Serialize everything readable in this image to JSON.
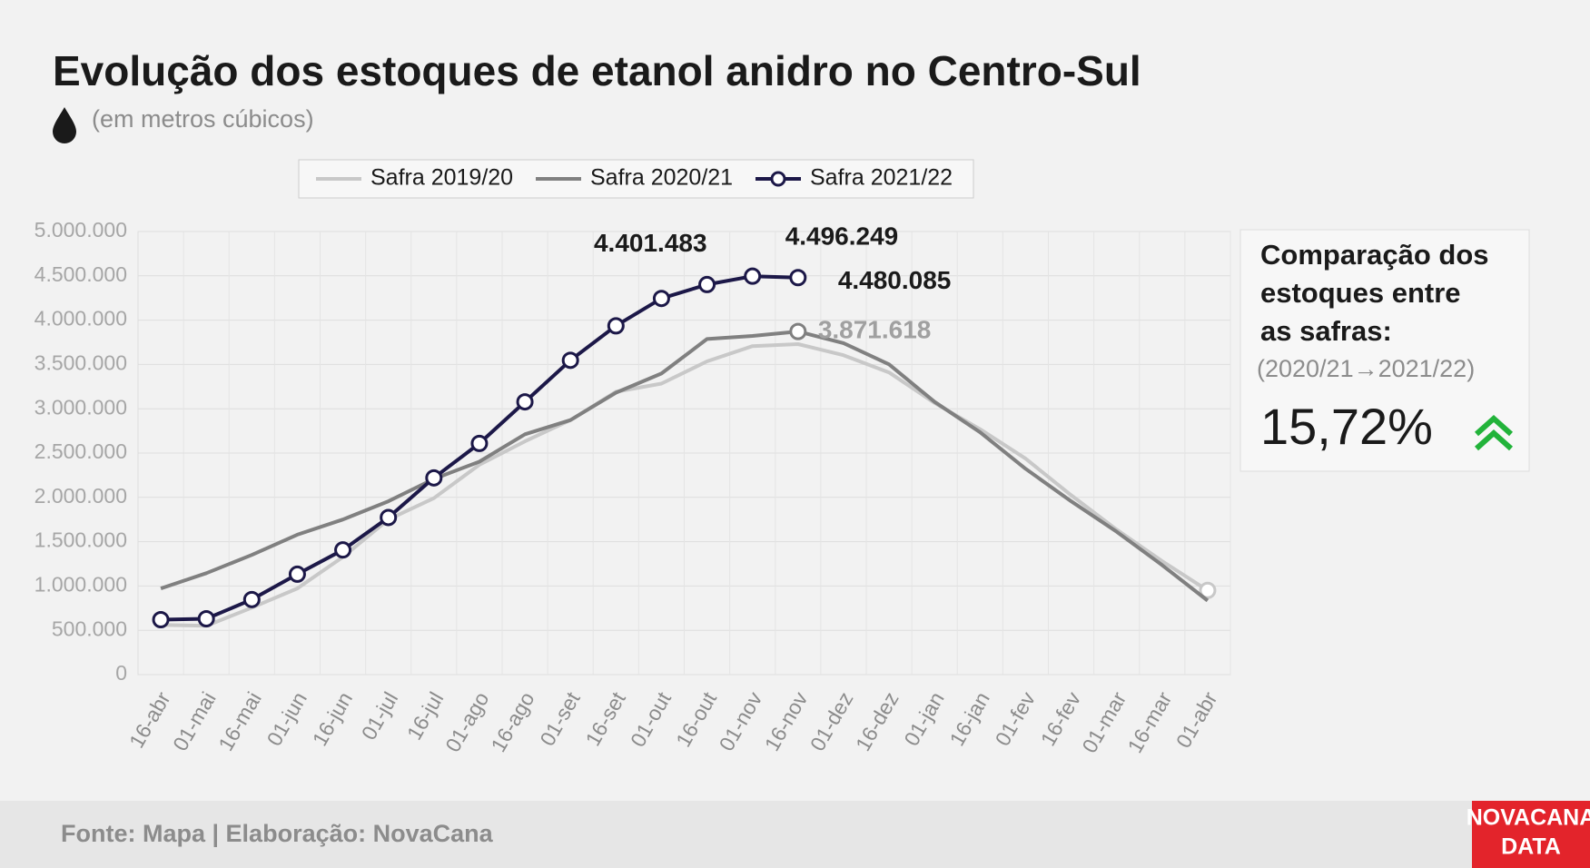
{
  "chart_data": {
    "type": "line",
    "title": "Evolução dos estoques de etanol anidro no Centro-Sul",
    "subtitle": "(em metros cúbicos)",
    "categories": [
      "16-abr",
      "01-mai",
      "16-mai",
      "01-jun",
      "16-jun",
      "01-jul",
      "16-jul",
      "01-ago",
      "16-ago",
      "01-set",
      "16-set",
      "01-out",
      "16-out",
      "01-nov",
      "16-nov",
      "01-dez",
      "16-dez",
      "01-jan",
      "16-jan",
      "01-fev",
      "16-fev",
      "01-mar",
      "16-mar",
      "01-abr"
    ],
    "series": [
      {
        "name": "Safra 2019/20",
        "color": "#c8c8c8",
        "marker_index": 23,
        "values": [
          560000,
          550000,
          755000,
          972000,
          1327000,
          1750000,
          1991000,
          2368000,
          2632000,
          2872000,
          3192000,
          3284000,
          3535000,
          3707000,
          3730000,
          3604000,
          3410000,
          3066000,
          2769000,
          2437000,
          2025000,
          1636000,
          1281000,
          950000
        ]
      },
      {
        "name": "Safra 2020/21",
        "color": "#808080",
        "marker_index": 14,
        "values": [
          972000,
          1144000,
          1350000,
          1579000,
          1750000,
          1956000,
          2208000,
          2403000,
          2712000,
          2872000,
          3181000,
          3398000,
          3787000,
          3822000,
          3871618,
          3741000,
          3501000,
          3078000,
          2735000,
          2323000,
          1956000,
          1613000,
          1236000,
          835000
        ],
        "value_labels": [
          null,
          null,
          null,
          null,
          null,
          null,
          null,
          null,
          null,
          null,
          null,
          null,
          null,
          null,
          "3.871.618",
          null,
          null,
          null,
          null,
          null,
          null,
          null,
          null,
          null
        ]
      },
      {
        "name": "Safra 2021/22",
        "color": "#1c1848",
        "markers": true,
        "values": [
          620000,
          630000,
          847000,
          1133000,
          1407000,
          1773000,
          2220000,
          2609000,
          3078000,
          3547000,
          3936000,
          4245000,
          4401483,
          4496249,
          4480085,
          null,
          null,
          null,
          null,
          null,
          null,
          null,
          null,
          null
        ],
        "value_labels": [
          null,
          null,
          null,
          null,
          null,
          null,
          null,
          null,
          null,
          null,
          null,
          null,
          "4.401.483",
          "4.496.249",
          "4.480.085",
          null,
          null,
          null,
          null,
          null,
          null,
          null,
          null,
          null
        ]
      }
    ],
    "ylim": [
      0,
      5000000
    ],
    "yticks": [
      0,
      {
        "value": 500000,
        "label": "500.000"
      },
      {
        "value": 1000000,
        "label": "1.000.000"
      },
      {
        "value": 1500000,
        "label": "1.500.000"
      },
      {
        "value": 2000000,
        "label": "2.000.000"
      },
      {
        "value": 2500000,
        "label": "2.500.000"
      },
      {
        "value": 3000000,
        "label": "3.000.000"
      },
      {
        "value": 3500000,
        "label": "3.500.000"
      },
      {
        "value": 4000000,
        "label": "4.000.000"
      },
      {
        "value": 4500000,
        "label": "4.500.000"
      },
      {
        "value": 5000000,
        "label": "5.000.000"
      }
    ],
    "grid": true,
    "legend": "top"
  },
  "comparison": {
    "title_lines": [
      "Comparação dos",
      "estoques entre",
      "as safras:"
    ],
    "period": "(2020/21→2021/22)",
    "value": "15,72%"
  },
  "footer": {
    "source": "Fonte: Mapa | Elaboração: NovaCana",
    "logo_lines": [
      "NOVACANA",
      "DATA"
    ]
  }
}
